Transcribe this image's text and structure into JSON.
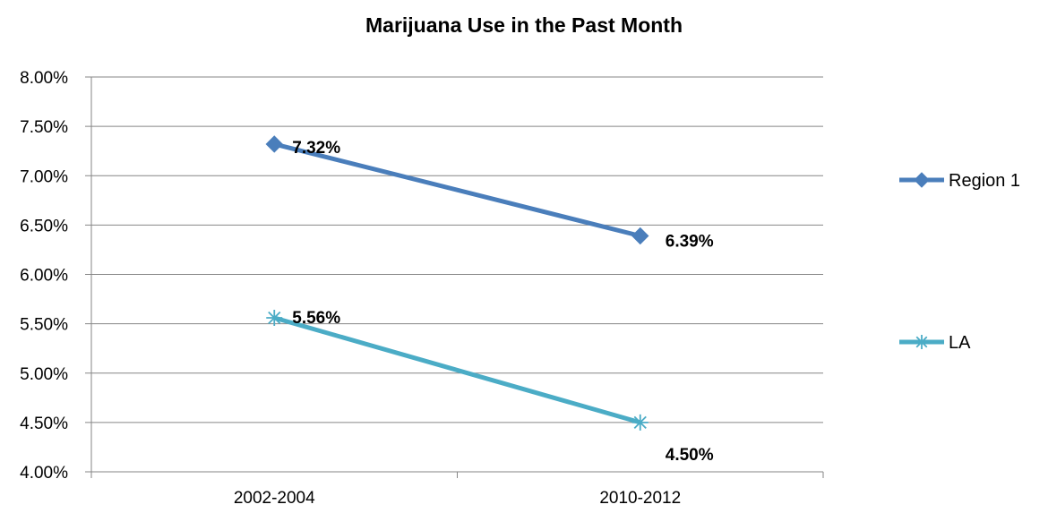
{
  "chart_data": {
    "type": "line",
    "title": "Marijuana Use in the Past Month",
    "xlabel": "",
    "ylabel": "",
    "categories": [
      "2002-2004",
      "2010-2012"
    ],
    "ylim": [
      0.04,
      0.08
    ],
    "ytick_step": 0.005,
    "ytick_labels": [
      "4.00%",
      "4.50%",
      "5.00%",
      "5.50%",
      "6.00%",
      "6.50%",
      "7.00%",
      "7.50%",
      "8.00%"
    ],
    "grid": true,
    "legend_position": "right",
    "series": [
      {
        "name": "Region 1",
        "values": [
          0.0732,
          0.0639
        ],
        "labels": [
          "7.32%",
          "6.39%"
        ],
        "color": "#4a7ebb",
        "marker": "diamond"
      },
      {
        "name": "LA",
        "values": [
          0.0556,
          0.045
        ],
        "labels": [
          "5.56%",
          "4.50%"
        ],
        "color": "#4bacc6",
        "marker": "star"
      }
    ]
  }
}
